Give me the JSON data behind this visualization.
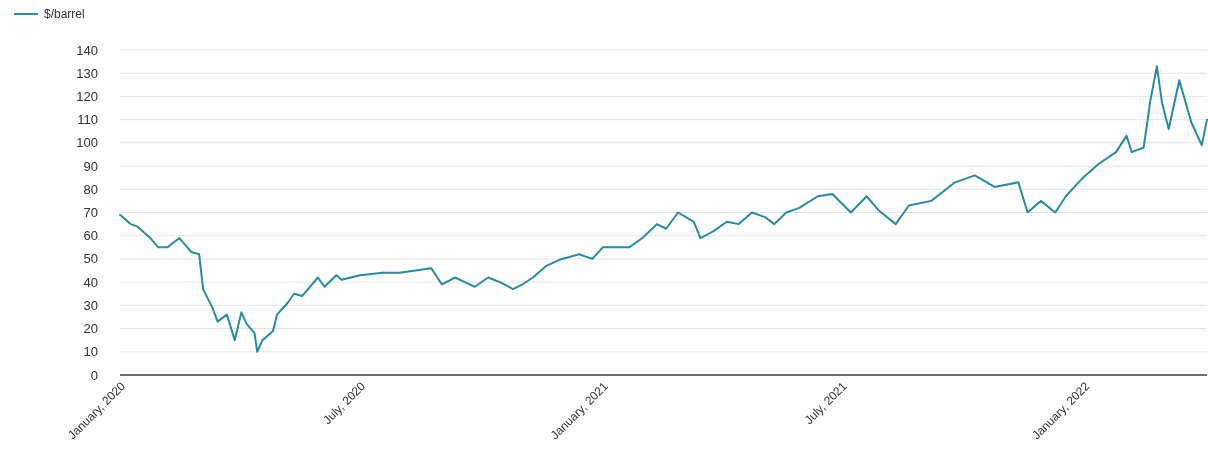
{
  "chart_data": {
    "type": "line",
    "legend": "top left",
    "grid": "y",
    "ylim": [
      0,
      140
    ],
    "yticks": [
      0,
      10,
      20,
      30,
      40,
      50,
      60,
      70,
      80,
      90,
      100,
      110,
      120,
      130,
      140
    ],
    "xlim": [
      "2020-01-01",
      "2022-04-04"
    ],
    "xticks": [
      {
        "value": "2020-01-01",
        "label": "January, 2020"
      },
      {
        "value": "2020-07-01",
        "label": "July, 2020"
      },
      {
        "value": "2021-01-01",
        "label": "January, 2021"
      },
      {
        "value": "2021-07-01",
        "label": "July, 2021"
      },
      {
        "value": "2022-01-01",
        "label": "January, 2022"
      }
    ],
    "x": [
      "2020-01-01",
      "2020-01-09",
      "2020-01-14",
      "2020-01-24",
      "2020-01-30",
      "2020-02-06",
      "2020-02-15",
      "2020-02-24",
      "2020-03-01",
      "2020-03-04",
      "2020-03-11",
      "2020-03-15",
      "2020-03-22",
      "2020-03-28",
      "2020-04-02",
      "2020-04-06",
      "2020-04-12",
      "2020-04-14",
      "2020-04-18",
      "2020-04-26",
      "2020-04-29",
      "2020-05-07",
      "2020-05-12",
      "2020-05-18",
      "2020-05-24",
      "2020-05-30",
      "2020-06-04",
      "2020-06-13",
      "2020-06-17",
      "2020-07-01",
      "2020-07-18",
      "2020-07-31",
      "2020-08-24",
      "2020-09-01",
      "2020-09-11",
      "2020-09-26",
      "2020-10-06",
      "2020-10-15",
      "2020-10-25",
      "2020-11-01",
      "2020-11-09",
      "2020-11-19",
      "2020-12-01",
      "2020-12-14",
      "2020-12-24",
      "2021-01-01",
      "2021-01-21",
      "2021-01-31",
      "2021-02-11",
      "2021-02-18",
      "2021-02-27",
      "2021-03-05",
      "2021-03-11",
      "2021-03-16",
      "2021-03-26",
      "2021-04-05",
      "2021-04-14",
      "2021-04-24",
      "2021-05-04",
      "2021-05-11",
      "2021-05-20",
      "2021-05-30",
      "2021-06-13",
      "2021-06-24",
      "2021-07-08",
      "2021-07-20",
      "2021-07-29",
      "2021-08-11",
      "2021-08-21",
      "2021-09-07",
      "2021-09-25",
      "2021-10-10",
      "2021-10-25",
      "2021-11-12",
      "2021-11-19",
      "2021-11-29",
      "2021-12-10",
      "2021-12-18",
      "2021-12-31",
      "2022-01-12",
      "2022-01-25",
      "2022-02-02",
      "2022-02-06",
      "2022-02-15",
      "2022-02-20",
      "2022-02-25",
      "2022-03-01",
      "2022-03-06",
      "2022-03-14",
      "2022-03-20",
      "2022-03-23",
      "2022-03-31",
      "2022-04-04"
    ],
    "series": [
      {
        "name": "$/barrel",
        "color": "#2a8aa0",
        "values": [
          69,
          65,
          64,
          59,
          55,
          55,
          59,
          53,
          52,
          37,
          29,
          23,
          26,
          15,
          27,
          22,
          18,
          10,
          15,
          19,
          26,
          31,
          35,
          34,
          38,
          42,
          38,
          43,
          41,
          43,
          44,
          44,
          46,
          39,
          42,
          38,
          42,
          40,
          37,
          39,
          42,
          47,
          50,
          52,
          50,
          55,
          55,
          59,
          65,
          63,
          70,
          68,
          66,
          59,
          62,
          66,
          65,
          70,
          68,
          65,
          70,
          72,
          77,
          78,
          70,
          77,
          71,
          65,
          73,
          75,
          83,
          86,
          81,
          83,
          70,
          75,
          70,
          77,
          85,
          91,
          96,
          103,
          96,
          98,
          118,
          133,
          117,
          106,
          127,
          115,
          109,
          99,
          110
        ]
      }
    ]
  }
}
